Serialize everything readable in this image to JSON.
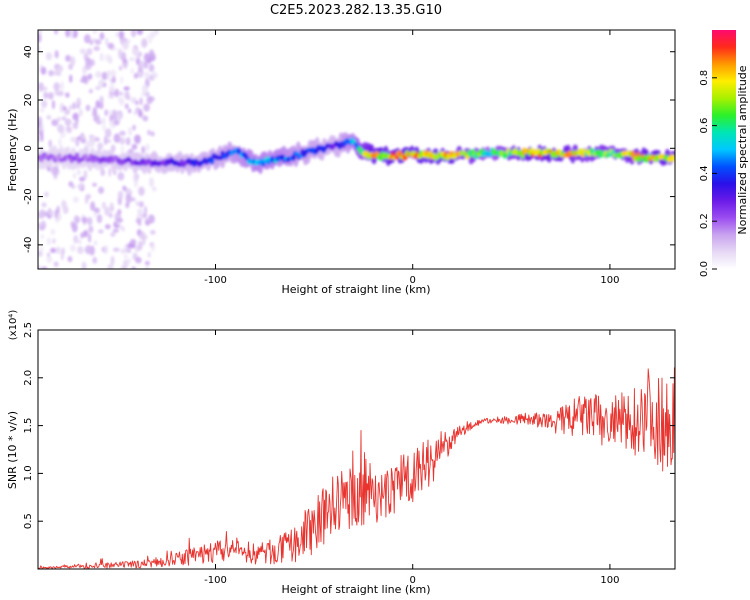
{
  "title": "C2E5.2023.282.13.35.G10",
  "colors": {
    "snr_line": "#e8332e",
    "colormap": [
      "#ffffff",
      "#e6d9f5",
      "#c9a3ef",
      "#9b4df0",
      "#6a1be8",
      "#2a10e8",
      "#0050ff",
      "#00c8ff",
      "#00e6b4",
      "#2cf02a",
      "#a8f000",
      "#ffee00",
      "#ff9a00",
      "#ff2a1a",
      "#ff0a6e"
    ]
  },
  "chart_data": [
    {
      "type": "heatmap",
      "name": "spectrogram",
      "xlabel": "Height of straight line (km)",
      "ylabel": "Frequency (Hz)",
      "xlim": [
        -190,
        133
      ],
      "ylim": [
        -50,
        49
      ],
      "x_ticks": [
        -100,
        0,
        100
      ],
      "x_tick_labels": [
        "-100",
        "0",
        "100"
      ],
      "y_ticks": [
        -40,
        -20,
        0,
        20,
        40
      ],
      "y_tick_labels": [
        "-40",
        "-20",
        "0",
        "20",
        "40"
      ],
      "ridge": {
        "x": [
          -190,
          -170,
          -150,
          -130,
          -110,
          -100,
          -90,
          -80,
          -70,
          -60,
          -50,
          -40,
          -30,
          -25,
          -20,
          0,
          20,
          40,
          60,
          80,
          100,
          120,
          133
        ],
        "frequency": [
          -4,
          -4,
          -5,
          -6,
          -6,
          -4,
          -1,
          -6,
          -5,
          -3,
          -1,
          1,
          3,
          -2,
          -3,
          -3,
          -3,
          -2,
          -2,
          -2,
          -2,
          -4,
          -4
        ],
        "amplitude": [
          0.2,
          0.22,
          0.25,
          0.3,
          0.35,
          0.4,
          0.45,
          0.5,
          0.5,
          0.45,
          0.4,
          0.35,
          0.5,
          0.7,
          0.85,
          0.85,
          0.85,
          0.6,
          0.85,
          0.8,
          0.7,
          0.85,
          0.8
        ]
      },
      "colorbar": {
        "label": "Normalized spectral amplitude",
        "range": [
          0.0,
          1.0
        ],
        "ticks": [
          0.0,
          0.2,
          0.4,
          0.6,
          0.8
        ],
        "tick_labels": [
          "0.0",
          "0.2",
          "0.4",
          "0.6",
          "0.8"
        ]
      }
    },
    {
      "type": "line",
      "name": "snr",
      "xlabel": "Height of straight line (km)",
      "ylabel": "SNR (10 * v/v)",
      "y_multiplier": "(x10⁴)",
      "xlim": [
        -190,
        133
      ],
      "ylim": [
        0,
        2.5
      ],
      "x_ticks": [
        -100,
        0,
        100
      ],
      "x_tick_labels": [
        "-100",
        "0",
        "100"
      ],
      "y_ticks": [
        0.5,
        1.0,
        1.5,
        2.0,
        2.5
      ],
      "y_tick_labels": [
        "0.5",
        "1.0",
        "1.5",
        "2.0",
        "2.5"
      ],
      "series": [
        {
          "color": "#e8332e",
          "x": [
            -190,
            -180,
            -170,
            -160,
            -150,
            -140,
            -130,
            -120,
            -110,
            -100,
            -90,
            -80,
            -70,
            -60,
            -55,
            -50,
            -45,
            -40,
            -35,
            -30,
            -25,
            -20,
            -15,
            -10,
            -5,
            0,
            5,
            10,
            15,
            20,
            25,
            30,
            35,
            40,
            45,
            50,
            55,
            60,
            65,
            70,
            75,
            80,
            85,
            90,
            95,
            100,
            105,
            110,
            115,
            120,
            125,
            130,
            133
          ],
          "y": [
            0.01,
            0.02,
            0.03,
            0.03,
            0.04,
            0.05,
            0.07,
            0.1,
            0.14,
            0.18,
            0.2,
            0.16,
            0.18,
            0.25,
            0.35,
            0.45,
            0.55,
            0.65,
            0.72,
            0.75,
            0.8,
            0.85,
            0.72,
            0.85,
            0.95,
            1.0,
            1.05,
            1.15,
            1.25,
            1.35,
            1.45,
            1.5,
            1.55,
            1.55,
            1.56,
            1.56,
            1.57,
            1.57,
            1.55,
            1.53,
            1.55,
            1.57,
            1.6,
            1.6,
            1.55,
            1.5,
            1.55,
            1.5,
            1.6,
            1.7,
            1.5,
            1.6,
            1.6
          ],
          "spread": [
            0.01,
            0.01,
            0.02,
            0.03,
            0.03,
            0.04,
            0.05,
            0.07,
            0.1,
            0.12,
            0.1,
            0.12,
            0.14,
            0.18,
            0.25,
            0.3,
            0.35,
            0.35,
            0.35,
            0.3,
            0.35,
            0.35,
            0.25,
            0.3,
            0.3,
            0.3,
            0.28,
            0.25,
            0.2,
            0.1,
            0.06,
            0.04,
            0.03,
            0.03,
            0.04,
            0.05,
            0.06,
            0.07,
            0.08,
            0.1,
            0.15,
            0.2,
            0.22,
            0.25,
            0.28,
            0.3,
            0.3,
            0.35,
            0.4,
            0.45,
            0.5,
            0.55,
            0.55
          ]
        }
      ]
    }
  ]
}
